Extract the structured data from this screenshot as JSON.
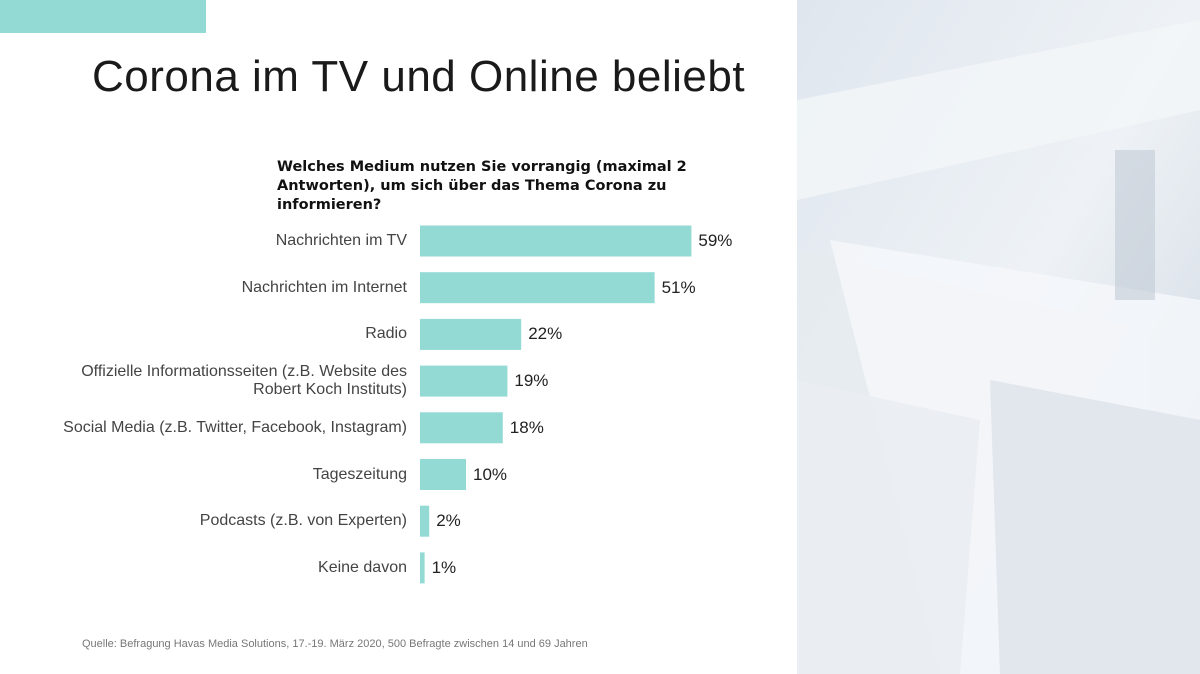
{
  "title": "Corona im TV und Online beliebt",
  "source": "Quelle: Befragung Havas Media Solutions, 17.-19. März 2020, 500 Befragte zwischen 14 und 69 Jahren",
  "chart_data": {
    "type": "bar",
    "orientation": "horizontal",
    "title": "Welches Medium nutzen Sie vorrangig (maximal 2 Antworten), um sich über das Thema Corona zu informieren?",
    "categories": [
      "Nachrichten im TV",
      "Nachrichten im Internet",
      "Radio",
      "Offizielle Informationsseiten (z.B. Website des Robert Koch Instituts)",
      "Social Media (z.B. Twitter, Facebook, Instagram)",
      "Tageszeitung",
      "Podcasts (z.B. von Experten)",
      "Keine davon"
    ],
    "values": [
      59,
      51,
      22,
      19,
      18,
      10,
      2,
      1
    ],
    "value_labels": [
      "59%",
      "51%",
      "22%",
      "19%",
      "18%",
      "10%",
      "2%",
      "1%"
    ],
    "color": "#93d9d4"
  }
}
